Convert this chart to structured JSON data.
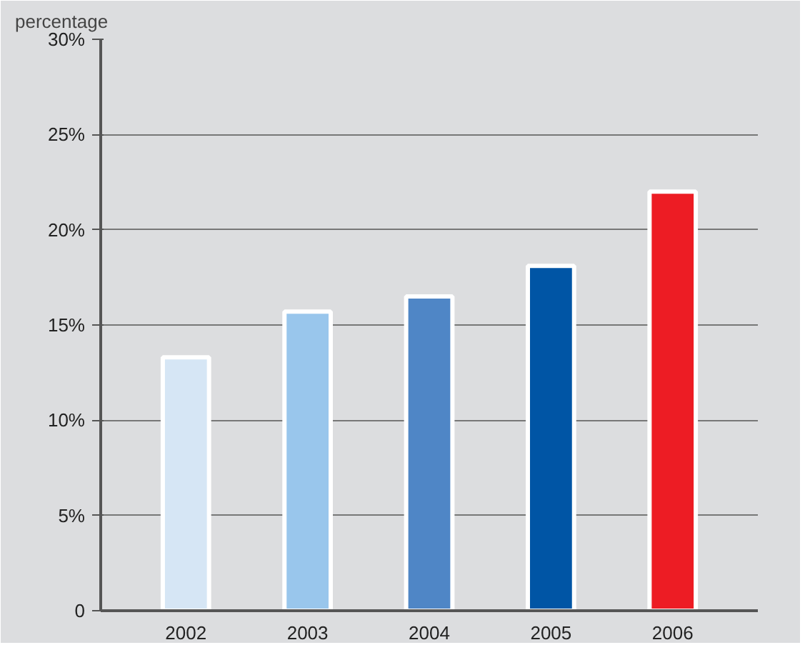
{
  "chart_data": {
    "type": "bar",
    "ylabel": "percentage",
    "categories": [
      "2002",
      "2003",
      "2004",
      "2005",
      "2006"
    ],
    "values": [
      13.3,
      15.7,
      16.5,
      18.1,
      22.0
    ],
    "colors": [
      "#d6e6f5",
      "#99c6ec",
      "#4f86c6",
      "#0055a5",
      "#ed1c24"
    ],
    "ylim": [
      0,
      30
    ],
    "yticks": [
      {
        "value": 0,
        "label": "0"
      },
      {
        "value": 5,
        "label": "5%"
      },
      {
        "value": 10,
        "label": "10%"
      },
      {
        "value": 15,
        "label": "15%"
      },
      {
        "value": 20,
        "label": "20%"
      },
      {
        "value": 25,
        "label": "25%"
      },
      {
        "value": 30,
        "label": "30%"
      }
    ],
    "grid": "y"
  }
}
